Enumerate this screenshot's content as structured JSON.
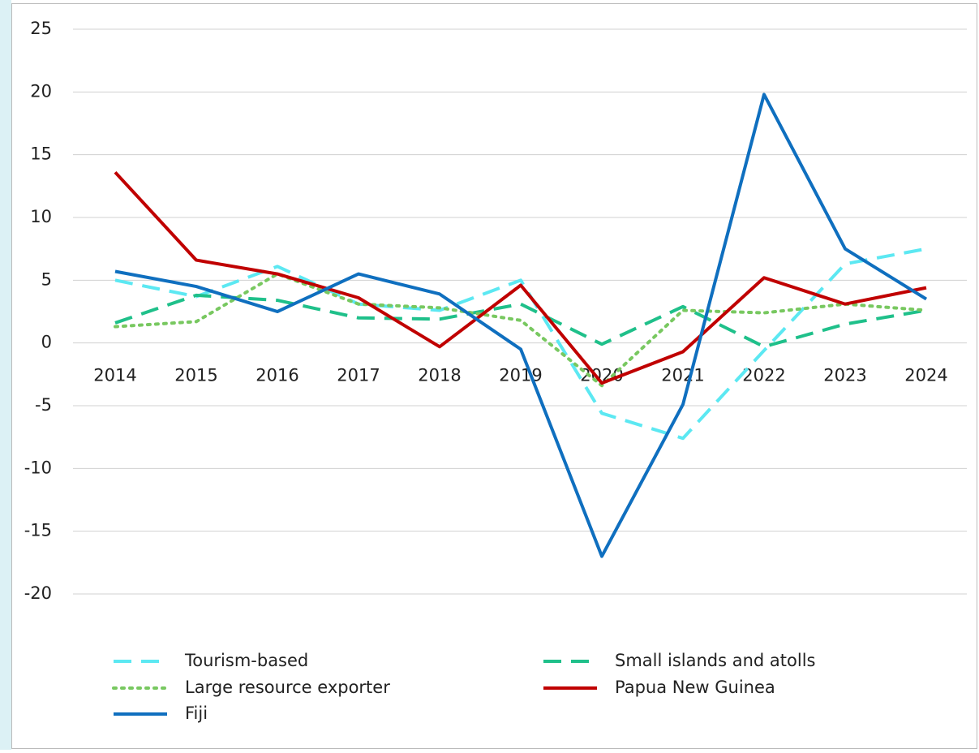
{
  "chart_data": {
    "type": "line",
    "categories": [
      "2014",
      "2015",
      "2016",
      "2017",
      "2018",
      "2019",
      "2020",
      "2021",
      "2022",
      "2023",
      "2024"
    ],
    "ylim": [
      -20,
      25
    ],
    "yticks": [
      -20,
      -15,
      -10,
      -5,
      0,
      5,
      10,
      15,
      20,
      25
    ],
    "grid": true,
    "series": [
      {
        "name": "Tourism-based",
        "color": "#5ce8f2",
        "style": "dashed",
        "values": [
          5.0,
          3.7,
          6.1,
          3.1,
          2.6,
          5.0,
          -5.6,
          -7.6,
          -0.6,
          6.3,
          7.5
        ]
      },
      {
        "name": "Small islands and atolls",
        "color": "#1fc08a",
        "style": "dashed",
        "values": [
          1.6,
          3.8,
          3.4,
          2.0,
          1.9,
          3.1,
          -0.1,
          2.9,
          -0.3,
          1.5,
          2.6
        ]
      },
      {
        "name": "Large resource exporter",
        "color": "#78c860",
        "style": "dotted",
        "values": [
          1.3,
          1.7,
          5.5,
          3.1,
          2.8,
          1.8,
          -3.4,
          2.6,
          2.4,
          3.1,
          2.6
        ]
      },
      {
        "name": "Papua New Guinea",
        "color": "#c00000",
        "style": "solid",
        "values": [
          13.6,
          6.6,
          5.5,
          3.6,
          -0.3,
          4.6,
          -3.2,
          -0.7,
          5.2,
          3.1,
          4.4
        ]
      },
      {
        "name": "Fiji",
        "color": "#0f6fbf",
        "style": "solid",
        "values": [
          5.7,
          4.5,
          2.5,
          5.5,
          3.9,
          -0.5,
          -17.0,
          -4.9,
          19.8,
          7.5,
          3.5
        ]
      }
    ]
  }
}
